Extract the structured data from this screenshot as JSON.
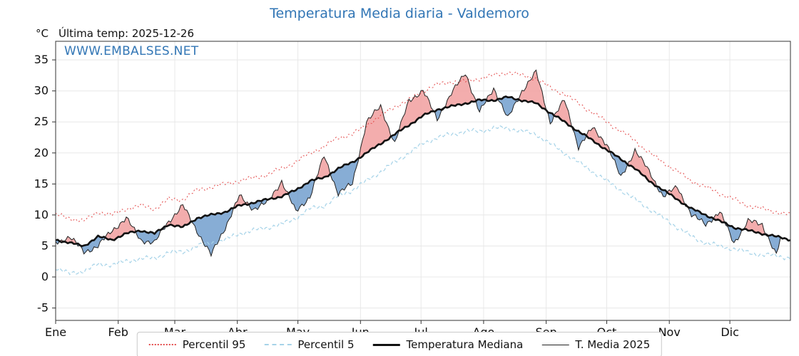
{
  "title": "Temperatura Media diaria - Valdemoro",
  "header": {
    "unit": "°C",
    "last_temp": "Última temp: 2025-12-26"
  },
  "watermark": "WWW.EMBALSES.NET",
  "colors": {
    "title": "#3276b5",
    "watermark": "#3276b5",
    "p95": "#e34a4a",
    "p5": "#a6d3e8",
    "median": "#111111",
    "t2025": "#222222",
    "fill_above": "#f19f9f",
    "fill_below": "#729fce",
    "grid": "#e8e8e8",
    "axis": "#333333",
    "tick_text": "#111111"
  },
  "legend": [
    {
      "key": "p95",
      "label": "Percentil 95"
    },
    {
      "key": "p5",
      "label": "Percentil 5"
    },
    {
      "key": "median",
      "label": "Temperatura Mediana"
    },
    {
      "key": "t2025",
      "label": "T. Media 2025"
    }
  ],
  "chart_data": {
    "type": "line",
    "title": "Temperatura Media diaria - Valdemoro",
    "xlabel": "",
    "ylabel": "°C",
    "ylim": [
      -5,
      35
    ],
    "yticks": [
      -5,
      0,
      5,
      10,
      15,
      20,
      25,
      30,
      35
    ],
    "grid": true,
    "legend_position": "bottom",
    "x_unit": "day_of_year",
    "months": [
      {
        "label": "Ene",
        "day": 1
      },
      {
        "label": "Feb",
        "day": 32
      },
      {
        "label": "Mar",
        "day": 60
      },
      {
        "label": "Abr",
        "day": 91
      },
      {
        "label": "May",
        "day": 121
      },
      {
        "label": "Jun",
        "day": 152
      },
      {
        "label": "Jul",
        "day": 182
      },
      {
        "label": "Ago",
        "day": 213
      },
      {
        "label": "Sep",
        "day": 244
      },
      {
        "label": "Oct",
        "day": 274
      },
      {
        "label": "Nov",
        "day": 305
      },
      {
        "label": "Dic",
        "day": 335
      }
    ],
    "x": [
      1,
      8,
      15,
      22,
      29,
      36,
      43,
      50,
      57,
      64,
      71,
      78,
      85,
      92,
      99,
      106,
      113,
      120,
      127,
      134,
      141,
      148,
      155,
      162,
      169,
      176,
      183,
      190,
      197,
      204,
      211,
      218,
      225,
      232,
      239,
      246,
      253,
      260,
      267,
      274,
      281,
      288,
      295,
      302,
      309,
      316,
      323,
      330,
      337,
      344,
      351,
      358,
      365
    ],
    "series": [
      {
        "name": "Percentil 95",
        "style": "red-dotted",
        "values": [
          10.0,
          9.5,
          9.0,
          10.5,
          10.0,
          11.0,
          11.5,
          11.0,
          12.5,
          12.5,
          14.0,
          14.5,
          15.0,
          15.5,
          16.0,
          16.5,
          17.5,
          18.5,
          20.0,
          21.0,
          22.5,
          23.0,
          24.5,
          26.0,
          27.5,
          28.5,
          30.0,
          31.0,
          31.5,
          31.5,
          32.0,
          32.5,
          33.0,
          32.5,
          32.0,
          30.5,
          29.5,
          28.0,
          26.5,
          25.0,
          23.5,
          22.0,
          20.0,
          18.5,
          17.0,
          15.5,
          14.5,
          13.5,
          12.5,
          11.5,
          11.0,
          10.5,
          10.0
        ]
      },
      {
        "name": "Percentil 5",
        "style": "lightblue-dashed",
        "values": [
          1.5,
          0.5,
          1.0,
          2.0,
          2.0,
          2.5,
          3.0,
          3.0,
          4.0,
          4.0,
          5.0,
          5.5,
          6.0,
          7.0,
          7.5,
          8.0,
          8.5,
          9.5,
          11.0,
          11.5,
          13.0,
          14.0,
          15.5,
          17.0,
          18.5,
          20.0,
          21.5,
          22.5,
          23.0,
          23.5,
          23.5,
          24.0,
          24.0,
          23.5,
          23.0,
          21.5,
          20.0,
          18.5,
          17.0,
          15.5,
          14.0,
          12.5,
          11.0,
          9.5,
          8.0,
          6.5,
          5.5,
          5.0,
          4.5,
          4.0,
          3.5,
          3.5,
          3.0
        ]
      },
      {
        "name": "Temperatura Mediana",
        "style": "black-thick",
        "values": [
          6.0,
          5.5,
          5.0,
          6.5,
          6.0,
          7.0,
          7.5,
          7.0,
          8.5,
          8.0,
          9.5,
          10.0,
          10.5,
          11.5,
          12.0,
          12.5,
          13.0,
          14.0,
          15.5,
          16.0,
          17.5,
          18.5,
          20.0,
          21.5,
          23.0,
          24.5,
          26.0,
          27.0,
          27.5,
          28.0,
          28.5,
          28.5,
          29.0,
          28.5,
          28.0,
          26.5,
          25.0,
          23.5,
          22.0,
          20.5,
          19.0,
          17.5,
          15.5,
          14.0,
          12.5,
          11.0,
          10.0,
          9.0,
          8.0,
          7.5,
          7.0,
          6.5,
          6.0
        ]
      },
      {
        "name": "T. Media 2025",
        "style": "black-thin",
        "x": [
          1,
          8,
          15,
          22,
          29,
          36,
          43,
          50,
          57,
          64,
          71,
          78,
          85,
          92,
          99,
          106,
          113,
          120,
          127,
          134,
          141,
          148,
          155,
          162,
          169,
          176,
          183,
          190,
          197,
          204,
          211,
          218,
          225,
          232,
          239,
          246,
          253,
          260,
          267,
          274,
          281,
          288,
          295,
          302,
          309,
          316,
          323,
          330,
          337,
          344,
          351,
          358,
          360
        ],
        "values": [
          5.5,
          6.5,
          4.0,
          5.0,
          7.5,
          9.5,
          6.0,
          5.5,
          9.0,
          11.5,
          7.5,
          3.5,
          8.0,
          13.0,
          11.0,
          12.0,
          15.5,
          10.5,
          13.0,
          19.5,
          13.5,
          15.0,
          25.0,
          27.5,
          21.5,
          28.5,
          30.0,
          25.5,
          29.5,
          33.0,
          26.5,
          30.5,
          25.5,
          30.0,
          33.0,
          25.0,
          28.5,
          21.0,
          24.0,
          21.5,
          16.0,
          20.5,
          17.0,
          13.0,
          14.5,
          10.0,
          8.5,
          10.5,
          5.5,
          9.0,
          8.5,
          3.5,
          6.0
        ]
      }
    ],
    "fills": [
      {
        "between": [
          "T. Media 2025",
          "Temperatura Mediana"
        ],
        "where": "above",
        "meaning": "2025 warmer than median",
        "color": "#f19f9f"
      },
      {
        "between": [
          "T. Media 2025",
          "Temperatura Mediana"
        ],
        "where": "below",
        "meaning": "2025 colder than median",
        "color": "#729fce"
      }
    ]
  }
}
